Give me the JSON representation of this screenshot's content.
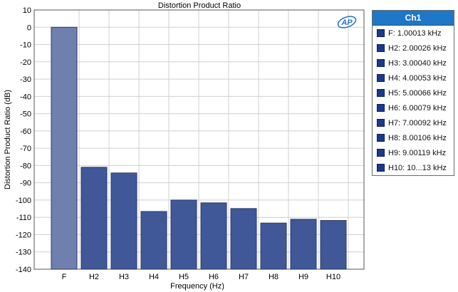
{
  "chart_data": {
    "type": "bar",
    "title": "Distortion Product Ratio",
    "xlabel": "Frequency (Hz)",
    "ylabel": "Distortion Product Ratio (dB)",
    "ylim": [
      -140,
      10
    ],
    "yticks": [
      10,
      0,
      -10,
      -20,
      -30,
      -40,
      -50,
      -60,
      -70,
      -80,
      -90,
      -100,
      -110,
      -120,
      -130,
      -140
    ],
    "categories": [
      "F",
      "H2",
      "H3",
      "H4",
      "H5",
      "H6",
      "H7",
      "H8",
      "H9",
      "H10"
    ],
    "values": [
      0,
      -81,
      -84.3,
      -106.6,
      -100,
      -101.6,
      -104.9,
      -113.3,
      -111.1,
      -111.8
    ],
    "grid": true,
    "legend_position": "right"
  },
  "logo": {
    "text": "AP"
  },
  "legend": {
    "header": "Ch1",
    "items": [
      "F: 1.00013 kHz",
      "H2: 2.00026 kHz",
      "H3: 3.00040 kHz",
      "H4: 4.00053 kHz",
      "H5: 5.00066 kHz",
      "H6: 6.00079 kHz",
      "H7: 7.00092 kHz",
      "H8: 8.00106 kHz",
      "H9: 9.00119 kHz",
      "H10: 10...13 kHz"
    ]
  },
  "colors": {
    "fundamental_bar": "#6f7fae",
    "harmonic_bar": "#405798",
    "bar_edge": "#2a3a6e",
    "grid": "#d0d0d0",
    "legend_header_bg": "#1f77c8",
    "swatch": "#1b3a8c"
  }
}
